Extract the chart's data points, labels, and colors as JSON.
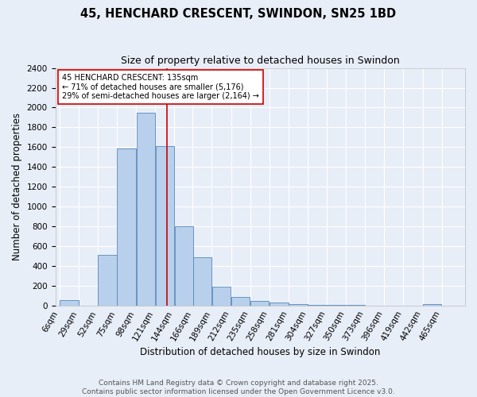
{
  "title": "45, HENCHARD CRESCENT, SWINDON, SN25 1BD",
  "subtitle": "Size of property relative to detached houses in Swindon",
  "xlabel": "Distribution of detached houses by size in Swindon",
  "ylabel": "Number of detached properties",
  "bar_labels": [
    "6sqm",
    "29sqm",
    "52sqm",
    "75sqm",
    "98sqm",
    "121sqm",
    "144sqm",
    "166sqm",
    "189sqm",
    "212sqm",
    "235sqm",
    "258sqm",
    "281sqm",
    "304sqm",
    "327sqm",
    "350sqm",
    "373sqm",
    "396sqm",
    "419sqm",
    "442sqm",
    "465sqm"
  ],
  "bar_values": [
    55,
    0,
    510,
    1590,
    1950,
    1610,
    800,
    490,
    195,
    90,
    45,
    30,
    18,
    10,
    5,
    10,
    0,
    0,
    0,
    15,
    0
  ],
  "bar_color": "#b8d0eb",
  "bar_edge_color": "#5588bb",
  "bg_color": "#e8eef8",
  "grid_color": "#ffffff",
  "vline_x": 135,
  "vline_color": "#cc0000",
  "annotation_text": "45 HENCHARD CRESCENT: 135sqm\n← 71% of detached houses are smaller (5,176)\n29% of semi-detached houses are larger (2,164) →",
  "annotation_box_color": "#ffffff",
  "annotation_box_edge": "#cc0000",
  "ylim": [
    0,
    2400
  ],
  "yticks": [
    0,
    200,
    400,
    600,
    800,
    1000,
    1200,
    1400,
    1600,
    1800,
    2000,
    2200,
    2400
  ],
  "footer": "Contains HM Land Registry data © Crown copyright and database right 2025.\nContains public sector information licensed under the Open Government Licence v3.0.",
  "title_fontsize": 10.5,
  "subtitle_fontsize": 9,
  "axis_label_fontsize": 8.5,
  "tick_fontsize": 7.5,
  "annotation_fontsize": 7,
  "footer_fontsize": 6.5
}
